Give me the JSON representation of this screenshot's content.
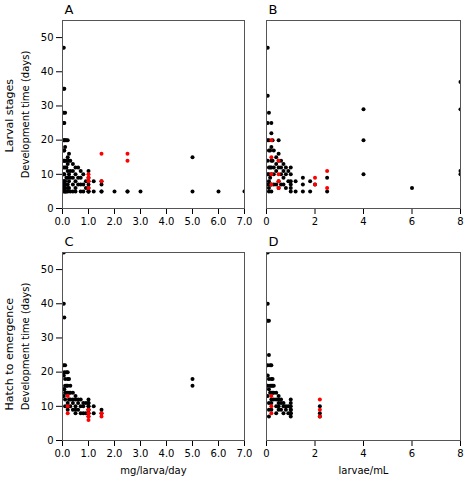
{
  "chart_data": [
    {
      "type": "scatter",
      "title": "A",
      "annotations": [
        "Larval stages"
      ],
      "ylabel": "Development time (days)",
      "xlim": [
        0,
        7
      ],
      "xticks": [
        0,
        1,
        2,
        3,
        4,
        5,
        6,
        7
      ],
      "ylim": [
        0,
        55
      ],
      "yticks": [
        0,
        10,
        20,
        30,
        40,
        50
      ],
      "grid": false,
      "series": [
        {
          "color": "#000000",
          "x": [
            0.05,
            0.05,
            0.05,
            0.05,
            0.05,
            0.05,
            0.05,
            0.05,
            0.05,
            0.05,
            0.05,
            0.05,
            0.05,
            0.07,
            0.07,
            0.07,
            0.07,
            0.07,
            0.07,
            0.07,
            0.07,
            0.1,
            0.1,
            0.1,
            0.1,
            0.1,
            0.1,
            0.1,
            0.1,
            0.1,
            0.1,
            0.15,
            0.15,
            0.15,
            0.15,
            0.15,
            0.2,
            0.2,
            0.2,
            0.2,
            0.2,
            0.2,
            0.2,
            0.2,
            0.25,
            0.25,
            0.25,
            0.25,
            0.25,
            0.3,
            0.3,
            0.3,
            0.3,
            0.4,
            0.4,
            0.4,
            0.4,
            0.4,
            0.5,
            0.5,
            0.5,
            0.5,
            0.5,
            0.6,
            0.6,
            0.6,
            0.7,
            0.7,
            0.7,
            0.7,
            0.8,
            0.8,
            0.8,
            0.9,
            0.9,
            1.0,
            1.0,
            1.0,
            1.0,
            1.0,
            1.0,
            1.0,
            1.0,
            1.2,
            1.2,
            1.5,
            1.5,
            1.5,
            1.5,
            2.0,
            2.5,
            2.5,
            3.0,
            5.0,
            5.0,
            6.0,
            7.0
          ],
          "values": [
            47,
            35,
            28,
            25,
            20,
            17,
            14,
            12,
            10,
            8,
            7,
            6,
            5,
            35,
            25,
            20,
            17,
            14,
            10,
            8,
            6,
            28,
            20,
            18,
            14,
            12,
            8,
            7,
            6,
            5,
            5,
            20,
            14,
            12,
            9,
            5,
            20,
            15,
            13,
            11,
            9,
            7,
            6,
            5,
            16,
            14,
            10,
            8,
            6,
            14,
            11,
            9,
            5,
            13,
            11,
            9,
            7,
            5,
            12,
            10,
            8,
            6,
            5,
            12,
            9,
            7,
            11,
            9,
            7,
            5,
            10,
            7,
            5,
            8,
            6,
            11,
            9,
            8,
            7,
            6,
            5,
            5,
            5,
            8,
            5,
            8,
            7,
            5,
            5,
            5,
            5,
            5,
            5,
            15,
            5,
            5,
            5
          ]
        },
        {
          "color": "#FF0000",
          "x": [
            1.0,
            1.0,
            1.0,
            1.0,
            1.5,
            1.5,
            2.5,
            2.5
          ],
          "values": [
            10,
            9,
            8,
            6,
            16,
            8,
            16,
            14
          ]
        }
      ]
    },
    {
      "type": "scatter",
      "title": "B",
      "tick_labels": "x",
      "xlim": [
        0,
        8
      ],
      "xticks": [
        0,
        2,
        4,
        6,
        8
      ],
      "ylim": [
        0,
        55
      ],
      "yticks": [
        0,
        10,
        20,
        30,
        40,
        50
      ],
      "grid": false,
      "series": [
        {
          "color": "#000000",
          "x": [
            0.05,
            0.05,
            0.05,
            0.05,
            0.05,
            0.05,
            0.05,
            0.1,
            0.1,
            0.1,
            0.1,
            0.1,
            0.1,
            0.1,
            0.1,
            0.15,
            0.15,
            0.15,
            0.15,
            0.2,
            0.2,
            0.2,
            0.2,
            0.2,
            0.2,
            0.2,
            0.2,
            0.25,
            0.25,
            0.3,
            0.3,
            0.3,
            0.3,
            0.4,
            0.4,
            0.4,
            0.4,
            0.5,
            0.5,
            0.5,
            0.5,
            0.5,
            0.5,
            0.6,
            0.6,
            0.6,
            0.6,
            0.7,
            0.7,
            0.7,
            0.7,
            0.8,
            0.8,
            0.8,
            0.9,
            0.9,
            1.0,
            1.0,
            1.0,
            1.0,
            1.0,
            1.0,
            1.2,
            1.2,
            1.5,
            1.5,
            1.5,
            1.8,
            1.8,
            2.0,
            2.5,
            2.5,
            4.0,
            4.0,
            4.0,
            6.0,
            8.0,
            8.0,
            8.0,
            8.0
          ],
          "values": [
            47,
            33,
            25,
            20,
            14,
            10,
            7,
            28,
            20,
            17,
            12,
            10,
            8,
            6,
            5,
            17,
            12,
            9,
            7,
            25,
            22,
            18,
            14,
            12,
            10,
            7,
            5,
            20,
            14,
            17,
            12,
            10,
            7,
            15,
            13,
            11,
            7,
            20,
            16,
            14,
            12,
            8,
            6,
            14,
            12,
            10,
            7,
            13,
            11,
            9,
            7,
            12,
            10,
            6,
            11,
            8,
            12,
            10,
            8,
            7,
            6,
            5,
            8,
            5,
            9,
            7,
            5,
            8,
            5,
            7,
            9,
            5,
            29,
            20,
            10,
            6,
            37,
            29,
            11,
            10
          ]
        },
        {
          "color": "#FF0000",
          "x": [
            0.2,
            0.2,
            0.2,
            0.2,
            0.5,
            0.5,
            0.5,
            0.5,
            2.0,
            2.0,
            2.5,
            2.5
          ],
          "values": [
            20,
            15,
            10,
            7,
            14,
            10,
            8,
            6,
            9,
            7,
            11,
            6
          ]
        }
      ]
    },
    {
      "type": "scatter",
      "title": "C",
      "annotations": [
        "Hatch to emergence"
      ],
      "ylabel": "Development time (days)",
      "xlabel": "mg/larva/day",
      "xlim": [
        0,
        7
      ],
      "xticks": [
        0,
        1,
        2,
        3,
        4,
        5,
        6,
        7
      ],
      "ylim": [
        0,
        55
      ],
      "yticks": [
        0,
        10,
        20,
        30,
        40,
        50
      ],
      "grid": false,
      "series": [
        {
          "color": "#000000",
          "x": [
            0.05,
            0.05,
            0.05,
            0.05,
            0.05,
            0.05,
            0.07,
            0.07,
            0.07,
            0.1,
            0.1,
            0.1,
            0.1,
            0.1,
            0.1,
            0.15,
            0.15,
            0.15,
            0.2,
            0.2,
            0.2,
            0.2,
            0.2,
            0.2,
            0.2,
            0.25,
            0.25,
            0.25,
            0.3,
            0.3,
            0.3,
            0.3,
            0.4,
            0.4,
            0.4,
            0.4,
            0.5,
            0.5,
            0.5,
            0.5,
            0.5,
            0.6,
            0.6,
            0.6,
            0.7,
            0.7,
            0.7,
            0.8,
            0.8,
            0.8,
            0.9,
            0.9,
            1.0,
            1.0,
            1.0,
            1.0,
            1.0,
            1.0,
            1.0,
            1.0,
            1.0,
            1.0,
            1.2,
            1.2,
            1.5,
            1.5,
            5.0,
            5.0
          ],
          "values": [
            55,
            40,
            22,
            19,
            15,
            13,
            36,
            20,
            15,
            22,
            18,
            16,
            14,
            12,
            10,
            20,
            16,
            14,
            20,
            18,
            16,
            14,
            11,
            10,
            9,
            18,
            14,
            12,
            16,
            14,
            12,
            10,
            14,
            12,
            11,
            9,
            13,
            12,
            10,
            9,
            8,
            12,
            11,
            9,
            12,
            10,
            8,
            11,
            10,
            8,
            11,
            8,
            12,
            11,
            11,
            10,
            10,
            9,
            9,
            8,
            8,
            7,
            10,
            8,
            9,
            8,
            18,
            16
          ]
        },
        {
          "color": "#FF0000",
          "x": [
            0.2,
            0.2,
            0.2,
            1.0,
            1.0,
            1.0,
            1.0,
            1.5,
            1.5
          ],
          "values": [
            13,
            10,
            8,
            9,
            8,
            7,
            6,
            8,
            7
          ]
        }
      ]
    },
    {
      "type": "scatter",
      "title": "D",
      "tick_labels": "x",
      "xlabel": "larvae/mL",
      "xlim": [
        0,
        8
      ],
      "xticks": [
        0,
        2,
        4,
        6,
        8
      ],
      "ylim": [
        0,
        55
      ],
      "yticks": [
        0,
        10,
        20,
        30,
        40,
        50
      ],
      "grid": false,
      "series": [
        {
          "color": "#000000",
          "x": [
            0.05,
            0.05,
            0.05,
            0.05,
            0.05,
            0.05,
            0.05,
            0.1,
            0.1,
            0.1,
            0.1,
            0.1,
            0.1,
            0.1,
            0.15,
            0.15,
            0.15,
            0.2,
            0.2,
            0.2,
            0.2,
            0.2,
            0.2,
            0.2,
            0.25,
            0.25,
            0.25,
            0.3,
            0.3,
            0.3,
            0.4,
            0.4,
            0.4,
            0.4,
            0.5,
            0.5,
            0.5,
            0.5,
            0.5,
            0.6,
            0.6,
            0.6,
            0.7,
            0.7,
            0.7,
            0.8,
            0.8,
            0.9,
            0.9,
            1.0,
            1.0,
            1.0,
            1.0,
            1.0,
            1.0,
            1.0,
            1.0,
            2.2,
            2.2,
            2.2
          ],
          "values": [
            55,
            40,
            35,
            22,
            19,
            16,
            13,
            35,
            25,
            18,
            15,
            11,
            9,
            7,
            22,
            16,
            14,
            22,
            18,
            16,
            14,
            12,
            11,
            9,
            18,
            16,
            14,
            16,
            14,
            12,
            14,
            12,
            10,
            8,
            13,
            12,
            11,
            10,
            9,
            12,
            11,
            9,
            11,
            10,
            8,
            10,
            9,
            10,
            8,
            12,
            11,
            10,
            9,
            9,
            8,
            8,
            7,
            10,
            8,
            7
          ]
        },
        {
          "color": "#FF0000",
          "x": [
            0.2,
            0.2,
            0.2,
            2.2,
            2.2,
            2.2
          ],
          "values": [
            13,
            10,
            8,
            12,
            9,
            7
          ]
        }
      ]
    }
  ]
}
